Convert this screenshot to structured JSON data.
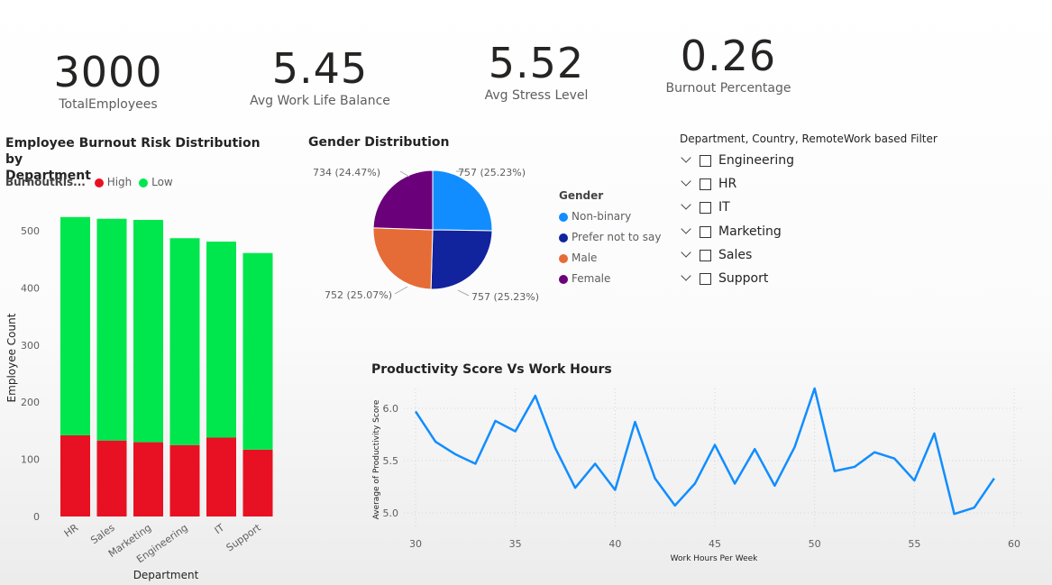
{
  "cards": [
    {
      "value": "3000",
      "label": "TotalEmployees"
    },
    {
      "value": "5.45",
      "label": "Avg Work Life Balance"
    },
    {
      "value": "5.52",
      "label": "Avg Stress Level"
    },
    {
      "value": "0.26",
      "label": "Burnout Percentage"
    }
  ],
  "bar_chart": {
    "title_line1": "Employee Burnout Risk Distribution by",
    "title_line2": "Department",
    "legend_title": "BurnoutRis...",
    "xlabel": "Department",
    "ylabel": "Employee Count"
  },
  "pie_chart": {
    "title": "Gender Distribution",
    "legend_title": "Gender"
  },
  "slicer": {
    "title": "Department, Country, RemoteWork based Filter",
    "items": [
      "Engineering",
      "HR",
      "IT",
      "Marketing",
      "Sales",
      "Support"
    ]
  },
  "line_chart": {
    "title": "Productivity Score Vs Work Hours",
    "xlabel": "Work Hours Per Week",
    "ylabel": "Average of Productivity Score"
  },
  "colors": {
    "high": "#e81123",
    "low": "#00e64d",
    "line": "#118dff",
    "nonbinary": "#118dff",
    "prefer": "#12239e",
    "male": "#e66c37",
    "female": "#6b007b"
  },
  "chart_data": [
    {
      "type": "bar",
      "stacked": true,
      "categories": [
        "HR",
        "Sales",
        "Marketing",
        "Engineering",
        "IT",
        "Support"
      ],
      "series": [
        {
          "name": "High",
          "values": [
            142,
            133,
            130,
            125,
            138,
            117
          ]
        },
        {
          "name": "Low",
          "values": [
            382,
            388,
            389,
            362,
            343,
            344
          ]
        }
      ],
      "xlabel": "Department",
      "ylabel": "Employee Count",
      "ylim": [
        0,
        540
      ],
      "yticks": [
        0,
        100,
        200,
        300,
        400,
        500
      ],
      "legend": "top-left",
      "grid": false
    },
    {
      "type": "pie",
      "slices": [
        {
          "name": "Non-binary",
          "value": 757,
          "label": "757 (25.23%)"
        },
        {
          "name": "Prefer not to say",
          "value": 757,
          "label": "757 (25.23%)"
        },
        {
          "name": "Male",
          "value": 752,
          "label": "752 (25.07%)"
        },
        {
          "name": "Female",
          "value": 734,
          "label": "734 (24.47%)"
        }
      ],
      "title": "Gender Distribution",
      "legend": "right"
    },
    {
      "type": "line",
      "title": "Productivity Score Vs Work Hours",
      "xlabel": "Work Hours Per Week",
      "ylabel": "Average of Productivity Score",
      "x": [
        30,
        31,
        32,
        33,
        34,
        35,
        36,
        37,
        38,
        39,
        40,
        41,
        42,
        43,
        44,
        45,
        46,
        47,
        48,
        49,
        50,
        51,
        52,
        53,
        54,
        55,
        56,
        57,
        58,
        59
      ],
      "y": [
        5.97,
        5.68,
        5.56,
        5.47,
        5.88,
        5.78,
        6.12,
        5.62,
        5.24,
        5.47,
        5.22,
        5.87,
        5.33,
        5.07,
        5.28,
        5.65,
        5.28,
        5.61,
        5.26,
        5.63,
        6.19,
        5.4,
        5.44,
        5.58,
        5.52,
        5.31,
        5.76,
        4.99,
        5.05,
        5.33
      ],
      "xlim": [
        30,
        60
      ],
      "xticks": [
        30,
        35,
        40,
        45,
        50,
        55,
        60
      ],
      "ylim": [
        4.9,
        6.25
      ],
      "yticks": [
        5.0,
        5.5,
        6.0
      ],
      "grid": true
    }
  ]
}
